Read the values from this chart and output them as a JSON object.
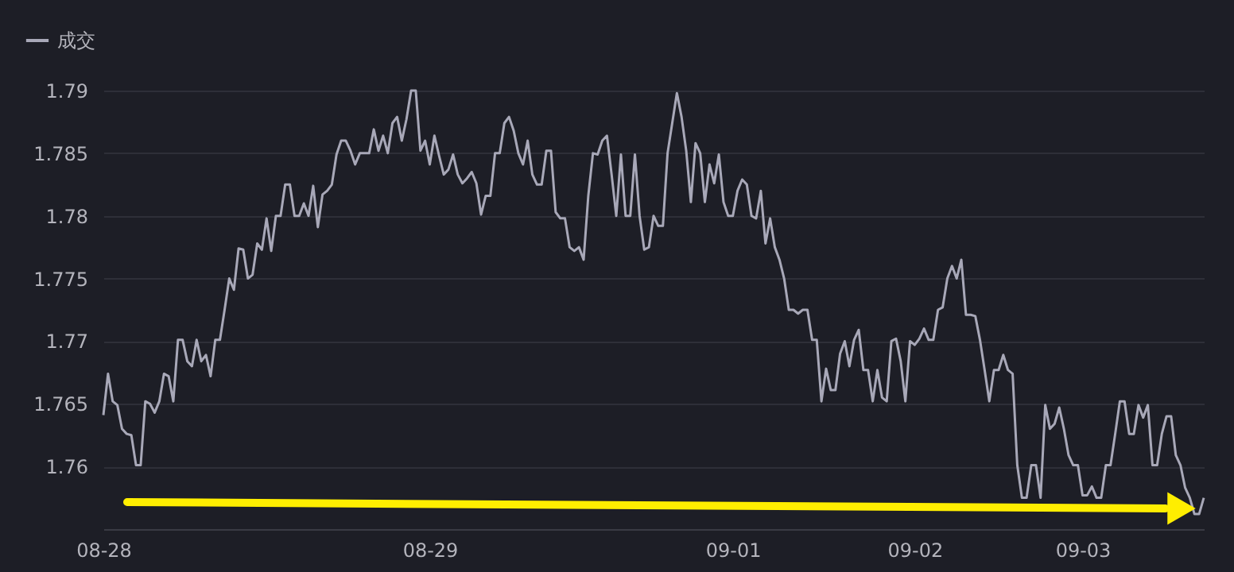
{
  "chart_data": {
    "type": "line",
    "categories": [
      "08-28",
      null,
      null,
      null,
      null,
      null,
      null,
      null,
      null,
      null,
      null,
      null,
      null,
      null,
      null,
      null,
      null,
      null,
      null,
      null,
      null,
      null,
      null,
      null,
      null,
      null,
      null,
      null,
      null,
      null,
      null,
      null,
      null,
      null,
      null,
      null,
      null,
      null,
      null,
      null,
      null,
      null,
      null,
      null,
      null,
      null,
      null,
      null,
      null,
      null,
      null,
      null,
      null,
      null,
      null,
      null,
      null,
      null,
      null,
      null,
      null,
      null,
      null,
      null,
      null,
      null,
      null,
      null,
      null,
      null,
      "08-29",
      null,
      null,
      null,
      null,
      null,
      null,
      null,
      null,
      null,
      null,
      null,
      null,
      null,
      null,
      null,
      null,
      null,
      null,
      null,
      null,
      null,
      null,
      null,
      null,
      null,
      null,
      null,
      null,
      null,
      null,
      null,
      null,
      null,
      null,
      null,
      null,
      null,
      null,
      null,
      null,
      null,
      null,
      null,
      null,
      null,
      null,
      null,
      null,
      null,
      null,
      null,
      null,
      null,
      null,
      null,
      null,
      null,
      null,
      null,
      null,
      null,
      null,
      null,
      null,
      "09-01",
      null,
      null,
      null,
      null,
      null,
      null,
      null,
      null,
      null,
      null,
      null,
      null,
      null,
      null,
      null,
      null,
      null,
      null,
      null,
      null,
      null,
      null,
      null,
      null,
      null,
      null,
      null,
      null,
      null,
      null,
      null,
      null,
      null,
      null,
      null,
      null,
      null,
      null,
      "09-02",
      null,
      null,
      null,
      null,
      null,
      null,
      null,
      null,
      null,
      null,
      null,
      null,
      null,
      null,
      null,
      null,
      null,
      null,
      null,
      null,
      null,
      null,
      null,
      null,
      null,
      null,
      null,
      null,
      null,
      null,
      null,
      null,
      null,
      null,
      null,
      "09-03",
      null,
      null,
      null,
      null,
      null,
      null,
      null,
      null,
      null,
      null,
      null,
      null,
      null,
      null,
      null,
      null,
      null,
      null,
      null,
      null,
      null,
      null,
      null,
      null,
      null,
      null
    ],
    "series": [
      {
        "name": "成交",
        "color": "#a8a8b8",
        "values": [
          1.7641,
          1.7674,
          1.7652,
          1.7649,
          1.763,
          1.7626,
          1.7625,
          1.7601,
          1.7601,
          1.7652,
          1.765,
          1.7643,
          1.7652,
          1.7674,
          1.7672,
          1.7652,
          1.7701,
          1.7701,
          1.7684,
          1.768,
          1.7701,
          1.7684,
          1.7689,
          1.7672,
          1.7701,
          1.7701,
          1.7725,
          1.775,
          1.7741,
          1.7774,
          1.7773,
          1.775,
          1.7753,
          1.7778,
          1.7773,
          1.7798,
          1.7772,
          1.78,
          1.78,
          1.7825,
          1.7825,
          1.78,
          1.78,
          1.781,
          1.78,
          1.7824,
          1.7791,
          1.7817,
          1.782,
          1.7825,
          1.7849,
          1.786,
          1.786,
          1.7852,
          1.7841,
          1.785,
          1.785,
          1.785,
          1.7869,
          1.7852,
          1.7864,
          1.785,
          1.7874,
          1.7879,
          1.786,
          1.7877,
          1.79,
          1.79,
          1.7852,
          1.786,
          1.7841,
          1.7864,
          1.7848,
          1.7833,
          1.7837,
          1.7849,
          1.7833,
          1.7826,
          1.783,
          1.7835,
          1.7826,
          1.7801,
          1.7816,
          1.7816,
          1.785,
          1.785,
          1.7874,
          1.7879,
          1.7868,
          1.785,
          1.7841,
          1.786,
          1.7833,
          1.7825,
          1.7825,
          1.7852,
          1.7852,
          1.7803,
          1.7798,
          1.7798,
          1.7775,
          1.7772,
          1.7775,
          1.7765,
          1.7816,
          1.785,
          1.7849,
          1.786,
          1.7864,
          1.7833,
          1.78,
          1.7849,
          1.78,
          1.78,
          1.7849,
          1.78,
          1.7773,
          1.7775,
          1.78,
          1.7792,
          1.7792,
          1.785,
          1.7874,
          1.7898,
          1.7879,
          1.7852,
          1.7811,
          1.7858,
          1.785,
          1.7811,
          1.7841,
          1.7826,
          1.7849,
          1.7811,
          1.78,
          1.78,
          1.782,
          1.7829,
          1.7825,
          1.78,
          1.7798,
          1.782,
          1.7778,
          1.7798,
          1.7775,
          1.7765,
          1.775,
          1.7725,
          1.7725,
          1.7722,
          1.7725,
          1.7725,
          1.7701,
          1.7701,
          1.7652,
          1.7678,
          1.7661,
          1.7661,
          1.769,
          1.77,
          1.768,
          1.7701,
          1.7709,
          1.7677,
          1.7677,
          1.7652,
          1.7677,
          1.7655,
          1.7652,
          1.77,
          1.7702,
          1.7684,
          1.7652,
          1.77,
          1.7697,
          1.7702,
          1.771,
          1.7701,
          1.7701,
          1.7725,
          1.7727,
          1.775,
          1.776,
          1.775,
          1.7765,
          1.7721,
          1.7721,
          1.772,
          1.7701,
          1.7677,
          1.7652,
          1.7677,
          1.7677,
          1.7689,
          1.7677,
          1.7674,
          1.7601,
          1.7575,
          1.7575,
          1.7601,
          1.7601,
          1.7575,
          1.7649,
          1.763,
          1.7634,
          1.7647,
          1.763,
          1.7609,
          1.7601,
          1.7601,
          1.7577,
          1.7577,
          1.7584,
          1.7575,
          1.7575,
          1.7601,
          1.7601,
          1.7626,
          1.7652,
          1.7652,
          1.7626,
          1.7626,
          1.7649,
          1.7639,
          1.7649,
          1.7601,
          1.7601,
          1.7626,
          1.764,
          1.764,
          1.7609,
          1.7601,
          1.7583,
          1.7575,
          1.7562,
          1.7562,
          1.7575
        ]
      }
    ],
    "ylim": [
      1.755,
      1.79
    ],
    "yticks": [
      {
        "value": 1.755,
        "label": null
      },
      1.76,
      1.765,
      1.77,
      1.775,
      1.78,
      1.785,
      1.79
    ],
    "grid": "y",
    "legend": "top left",
    "marker": "none",
    "line_style": "solid"
  }
}
